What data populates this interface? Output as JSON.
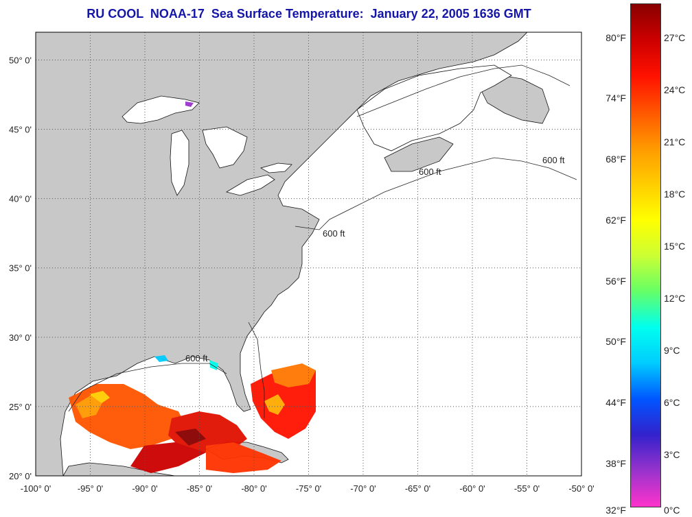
{
  "title": "RU COOL  NOAA-17  Sea Surface Temperature:  January 22, 2005 1636 GMT",
  "map": {
    "lon_range": [
      -100,
      -50
    ],
    "lat_range": [
      20,
      52
    ],
    "lon_ticks": [
      {
        "value": -100,
        "label": "-100° 0'"
      },
      {
        "value": -95,
        "label": "-95° 0'"
      },
      {
        "value": -90,
        "label": "-90° 0'"
      },
      {
        "value": -85,
        "label": "-85° 0'"
      },
      {
        "value": -80,
        "label": "-80° 0'"
      },
      {
        "value": -75,
        "label": "-75° 0'"
      },
      {
        "value": -70,
        "label": "-70° 0'"
      },
      {
        "value": -65,
        "label": "-65° 0'"
      },
      {
        "value": -60,
        "label": "-60° 0'"
      },
      {
        "value": -55,
        "label": "-55° 0'"
      },
      {
        "value": -50,
        "label": "-50° 0'"
      }
    ],
    "lat_ticks": [
      {
        "value": 20,
        "label": "20° 0'"
      },
      {
        "value": 25,
        "label": "25° 0'"
      },
      {
        "value": 30,
        "label": "30° 0'"
      },
      {
        "value": 35,
        "label": "35° 0'"
      },
      {
        "value": 40,
        "label": "40° 0'"
      },
      {
        "value": 45,
        "label": "45° 0'"
      },
      {
        "value": 50,
        "label": "50° 0'"
      }
    ],
    "contour_label": "600 ft",
    "land_color": "#c8c8c8",
    "ocean_color": "#ffffff"
  },
  "colorbar": {
    "range_c": [
      0,
      29
    ],
    "fahrenheit_labels": [
      {
        "c": 27.0,
        "label": "80°F"
      },
      {
        "c": 23.5,
        "label": "74°F"
      },
      {
        "c": 20.0,
        "label": "68°F"
      },
      {
        "c": 16.5,
        "label": "62°F"
      },
      {
        "c": 13.0,
        "label": "56°F"
      },
      {
        "c": 9.5,
        "label": "50°F"
      },
      {
        "c": 6.0,
        "label": "44°F"
      },
      {
        "c": 2.5,
        "label": "38°F"
      },
      {
        "c": -0.7,
        "label": "32°F"
      }
    ],
    "celsius_labels": [
      {
        "c": 27,
        "label": "27°C"
      },
      {
        "c": 24,
        "label": "24°C"
      },
      {
        "c": 21,
        "label": "21°C"
      },
      {
        "c": 18,
        "label": "18°C"
      },
      {
        "c": 15,
        "label": "15°C"
      },
      {
        "c": 12,
        "label": "12°C"
      },
      {
        "c": 9,
        "label": "9°C"
      },
      {
        "c": 6,
        "label": "6°C"
      },
      {
        "c": 3,
        "label": "3°C"
      },
      {
        "c": -0.5,
        "label": "0°C"
      }
    ],
    "colors": [
      "#ff33cc",
      "#9933cc",
      "#3322cc",
      "#0055ff",
      "#00ccff",
      "#00ffee",
      "#66ff66",
      "#ccff33",
      "#ffff00",
      "#ffcc00",
      "#ff9900",
      "#ff5500",
      "#ff1100",
      "#cc0000",
      "#880000"
    ]
  }
}
